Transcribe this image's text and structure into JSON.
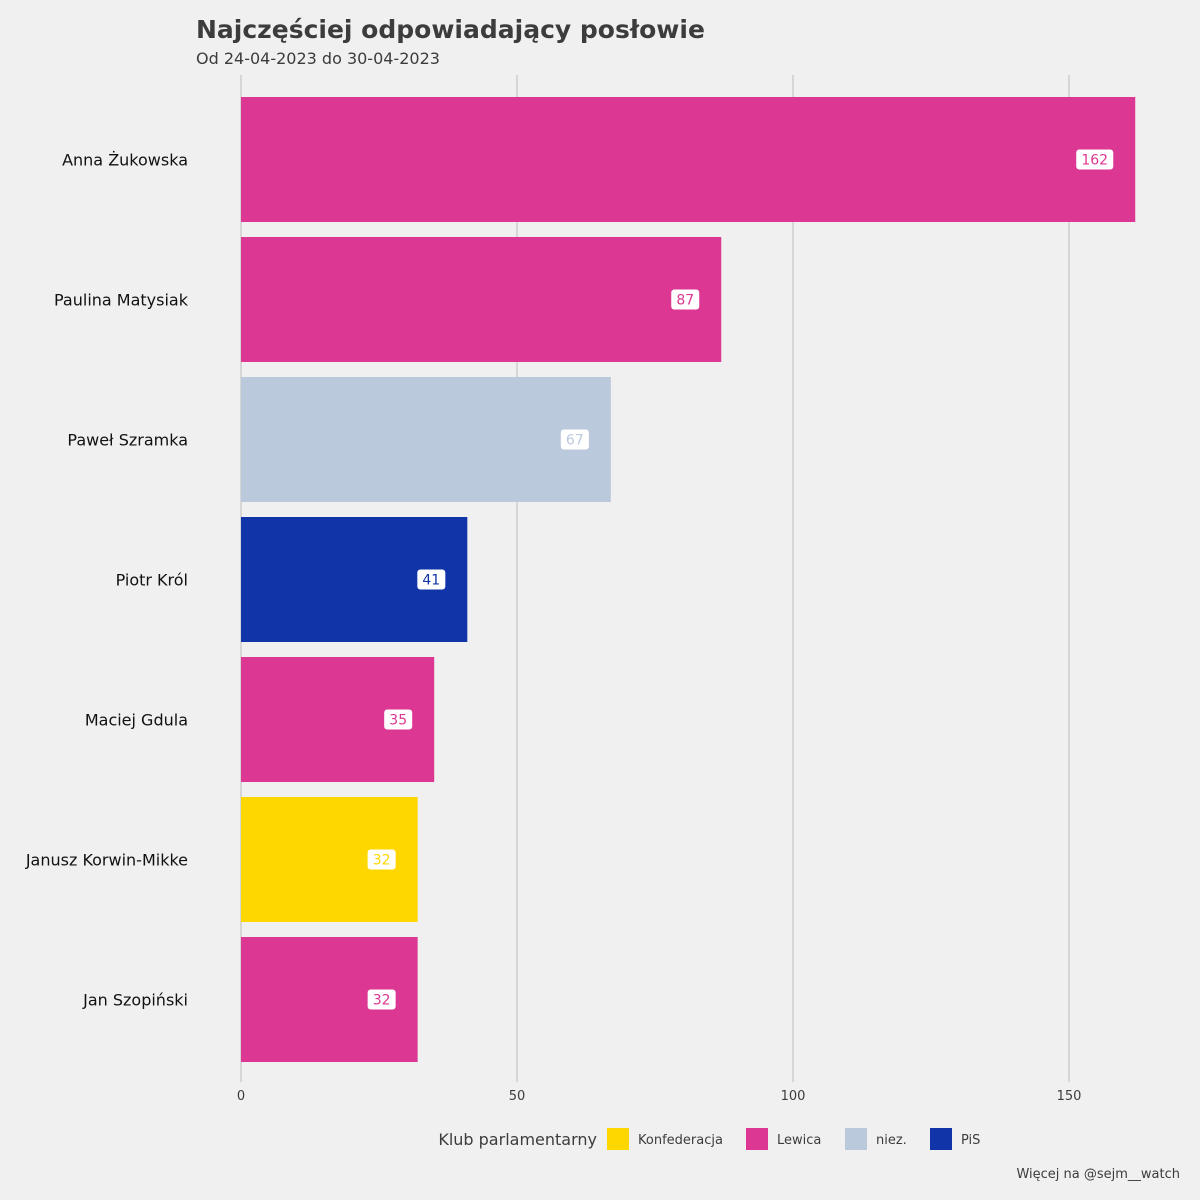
{
  "chart_data": {
    "type": "bar",
    "orientation": "horizontal",
    "title": "Najczęściej odpowiadający posłowie",
    "subtitle": "Od 24-04-2023 do 30-04-2023",
    "categories": [
      "Anna Żukowska",
      "Paulina Matysiak",
      "Paweł Szramka",
      "Piotr Król",
      "Maciej Gdula",
      "Janusz Korwin-Mikke",
      "Jan Szopiński"
    ],
    "values": [
      162,
      87,
      67,
      41,
      35,
      32,
      32
    ],
    "groups": [
      "Lewica",
      "Lewica",
      "niez.",
      "PiS",
      "Lewica",
      "Konfederacja",
      "Lewica"
    ],
    "xlim": [
      0,
      165
    ],
    "xticks": [
      0,
      50,
      100,
      150
    ],
    "grid": true,
    "legend": {
      "title": "Klub parlamentarny",
      "position": "bottom",
      "items": [
        {
          "label": "Konfederacja",
          "color": "#FFD700"
        },
        {
          "label": "Lewica",
          "color": "#DC3792"
        },
        {
          "label": "niez.",
          "color": "#BBC9DC"
        },
        {
          "label": "PiS",
          "color": "#1134A8"
        }
      ]
    },
    "caption": "Więcej na @sejm__watch"
  }
}
